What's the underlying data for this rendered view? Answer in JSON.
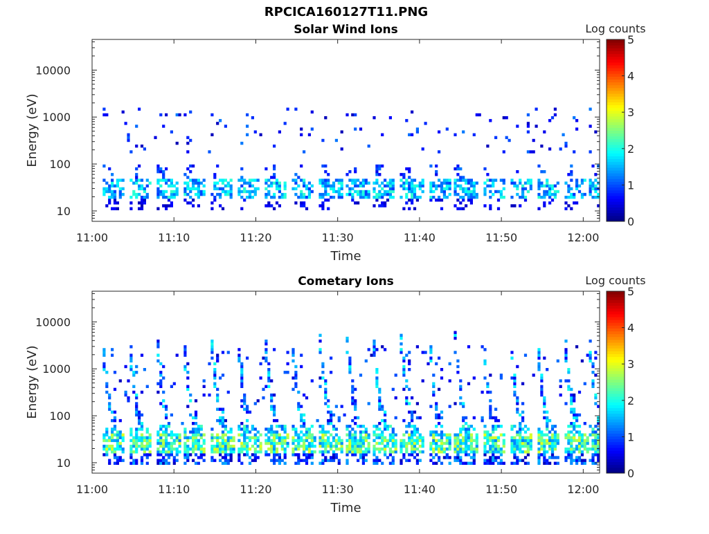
{
  "figure": {
    "title": "RPCICA160127T11.PNG"
  },
  "chart_data": [
    {
      "type": "heatmap",
      "title": "Solar Wind Ions",
      "xlabel": "Time",
      "ylabel": "Energy (eV)",
      "xticks": [
        "11:00",
        "11:10",
        "11:20",
        "11:30",
        "11:40",
        "11:50",
        "12:00"
      ],
      "xlim_minutes": [
        0,
        62
      ],
      "yticks": [
        "10",
        "100",
        "1000",
        "10000"
      ],
      "ylim": [
        6,
        45000
      ],
      "yscale": "log",
      "colorbar": {
        "label": "Log counts",
        "ticks": [
          "0",
          "1",
          "2",
          "3",
          "4",
          "5"
        ],
        "range": [
          0,
          5
        ],
        "colormap": "jet"
      },
      "grid": false,
      "bursts_minutes": [
        1.5,
        4.8,
        8.2,
        11.4,
        14.8,
        18.1,
        21.4,
        24.7,
        28.1,
        31.4,
        34.6,
        38.0,
        41.4,
        44.6,
        48.0,
        51.3,
        54.6,
        58.0,
        61.0
      ],
      "notes": "Bands of 1-2 log counts at ~20-40 eV with sparse dispersed signal up to ~1-2 keV"
    },
    {
      "type": "heatmap",
      "title": "Cometary Ions",
      "xlabel": "Time",
      "ylabel": "Energy (eV)",
      "xticks": [
        "11:00",
        "11:10",
        "11:20",
        "11:30",
        "11:40",
        "11:50",
        "12:00"
      ],
      "xlim_minutes": [
        0,
        62
      ],
      "yticks": [
        "10",
        "100",
        "1000",
        "10000"
      ],
      "ylim": [
        6,
        45000
      ],
      "yscale": "log",
      "colorbar": {
        "label": "Log counts",
        "ticks": [
          "0",
          "1",
          "2",
          "3",
          "4",
          "5"
        ],
        "range": [
          0,
          5
        ],
        "colormap": "jet"
      },
      "grid": false,
      "bursts_minutes": [
        1.5,
        4.8,
        8.2,
        11.4,
        14.8,
        18.1,
        21.4,
        24.7,
        28.1,
        31.4,
        34.6,
        38.0,
        41.4,
        44.6,
        48.0,
        51.3,
        54.6,
        58.0,
        61.0
      ],
      "notes": "Bands of 2-3 log counts at ~15-40 eV with dispersed tails extending to several keV"
    }
  ]
}
